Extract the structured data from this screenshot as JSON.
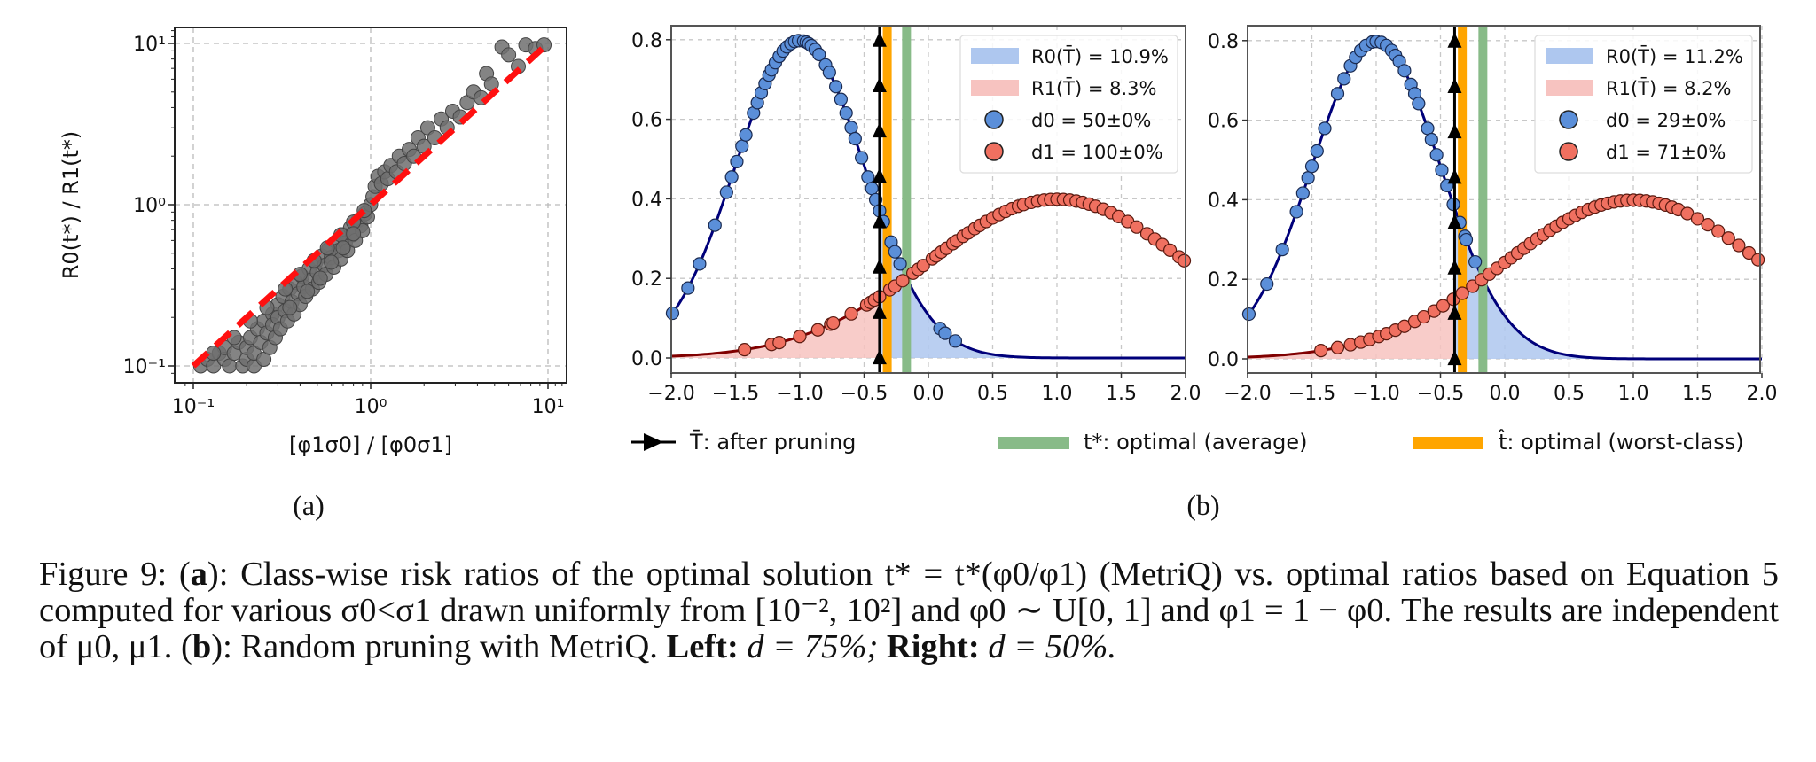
{
  "figure": {
    "caption": {
      "prefix": "Figure 9:",
      "a_label": "a",
      "a_text": ": Class-wise risk ratios of the optimal solution t* = t*(φ0/φ1) (MetriQ) vs. optimal ratios based on Equation 5 computed for various σ0<σ1 drawn uniformly from [10⁻², 10²] and φ0 ∼ U[0, 1] and φ1 = 1 − φ0. The results are independent of μ0, μ1.",
      "b_label": "b",
      "b_text": ": Random pruning with MetriQ.",
      "left_label": "Left:",
      "left_value": "d = 75%;",
      "right_label": "Right:",
      "right_value": "d = 50%."
    },
    "subfigure_labels": [
      "(a)",
      "(b)"
    ],
    "bottom_legend": [
      {
        "label": "T̄: after pruning",
        "marker": "arrow-triangle",
        "color": "#000000"
      },
      {
        "label": "t*: optimal (average)",
        "marker": "band",
        "color": "#88bb88"
      },
      {
        "label": "t̂: optimal (worst-class)",
        "marker": "band",
        "color": "#ffa500"
      }
    ]
  },
  "colors": {
    "class0_fill": "#5b8fd9",
    "class0_line": "#00007a",
    "class0_area": "#aec7ef",
    "class1_fill": "#f07060",
    "class1_line": "#800000",
    "class1_area": "#f7c3c0",
    "scatter": "#6e6e6e",
    "diagonal": "#ff1010",
    "t_star": "#88bb88",
    "t_hat": "#ffa500",
    "t_bar": "#000000"
  },
  "chart_data": [
    {
      "type": "scatter",
      "panel": "(a)",
      "xlabel": "[φ1σ0] / [φ0σ1]",
      "ylabel": "R0(t*) / R1(t*)",
      "xscale": "log",
      "yscale": "log",
      "xlim": [
        0.085,
        13
      ],
      "ylim": [
        0.085,
        13
      ],
      "xticks": [
        "10⁻¹",
        "10⁰",
        "10¹"
      ],
      "yticks": [
        "10⁻¹",
        "10⁰",
        "10¹"
      ],
      "tick_values": [
        0.1,
        1,
        10
      ],
      "grid": true,
      "reference_line": {
        "style": "dashed",
        "from": [
          0.1,
          0.1
        ],
        "to": [
          10,
          10
        ]
      },
      "points_description_value": "y ≈ x^1.25 for x<1 (below diagonal), y ≈ x for x>1 (above diagonal)",
      "points": [
        [
          0.11,
          0.1
        ],
        [
          0.12,
          0.11
        ],
        [
          0.13,
          0.1
        ],
        [
          0.14,
          0.12
        ],
        [
          0.15,
          0.11
        ],
        [
          0.15,
          0.13
        ],
        [
          0.16,
          0.1
        ],
        [
          0.17,
          0.12
        ],
        [
          0.18,
          0.14
        ],
        [
          0.19,
          0.1
        ],
        [
          0.2,
          0.11
        ],
        [
          0.2,
          0.13
        ],
        [
          0.21,
          0.15
        ],
        [
          0.22,
          0.1
        ],
        [
          0.22,
          0.12
        ],
        [
          0.23,
          0.17
        ],
        [
          0.24,
          0.14
        ],
        [
          0.25,
          0.11
        ],
        [
          0.25,
          0.19
        ],
        [
          0.26,
          0.16
        ],
        [
          0.27,
          0.13
        ],
        [
          0.28,
          0.21
        ],
        [
          0.28,
          0.18
        ],
        [
          0.29,
          0.15
        ],
        [
          0.3,
          0.24
        ],
        [
          0.3,
          0.2
        ],
        [
          0.31,
          0.17
        ],
        [
          0.32,
          0.27
        ],
        [
          0.33,
          0.22
        ],
        [
          0.34,
          0.19
        ],
        [
          0.35,
          0.3
        ],
        [
          0.36,
          0.25
        ],
        [
          0.37,
          0.21
        ],
        [
          0.38,
          0.33
        ],
        [
          0.39,
          0.28
        ],
        [
          0.4,
          0.24
        ],
        [
          0.41,
          0.36
        ],
        [
          0.42,
          0.31
        ],
        [
          0.43,
          0.27
        ],
        [
          0.45,
          0.4
        ],
        [
          0.46,
          0.34
        ],
        [
          0.47,
          0.3
        ],
        [
          0.49,
          0.44
        ],
        [
          0.5,
          0.38
        ],
        [
          0.51,
          0.33
        ],
        [
          0.53,
          0.48
        ],
        [
          0.55,
          0.42
        ],
        [
          0.56,
          0.37
        ],
        [
          0.58,
          0.53
        ],
        [
          0.6,
          0.47
        ],
        [
          0.62,
          0.41
        ],
        [
          0.64,
          0.59
        ],
        [
          0.66,
          0.52
        ],
        [
          0.68,
          0.46
        ],
        [
          0.7,
          0.65
        ],
        [
          0.72,
          0.58
        ],
        [
          0.74,
          0.52
        ],
        [
          0.77,
          0.72
        ],
        [
          0.79,
          0.65
        ],
        [
          0.82,
          0.6
        ],
        [
          0.85,
          0.8
        ],
        [
          0.88,
          0.74
        ],
        [
          0.9,
          0.69
        ],
        [
          0.93,
          0.88
        ],
        [
          0.96,
          0.84
        ],
        [
          1.0,
          1.0
        ],
        [
          1.03,
          1.12
        ],
        [
          1.06,
          1.3
        ],
        [
          1.1,
          1.5
        ],
        [
          1.15,
          1.35
        ],
        [
          1.2,
          1.6
        ],
        [
          1.25,
          1.45
        ],
        [
          1.3,
          1.75
        ],
        [
          1.4,
          1.6
        ],
        [
          1.45,
          2.0
        ],
        [
          1.55,
          1.8
        ],
        [
          1.65,
          2.2
        ],
        [
          1.75,
          2.0
        ],
        [
          1.85,
          2.6
        ],
        [
          2.0,
          2.3
        ],
        [
          2.1,
          3.0
        ],
        [
          2.3,
          2.6
        ],
        [
          2.5,
          3.4
        ],
        [
          2.7,
          3.0
        ],
        [
          2.9,
          3.8
        ],
        [
          3.2,
          3.5
        ],
        [
          3.5,
          4.3
        ],
        [
          3.8,
          5.0
        ],
        [
          4.2,
          4.6
        ],
        [
          4.5,
          6.5
        ],
        [
          4.8,
          5.6
        ],
        [
          5.5,
          9.5
        ],
        [
          6,
          8.5
        ],
        [
          6.8,
          7.2
        ],
        [
          7.5,
          9.8
        ],
        [
          8.5,
          9.3
        ],
        [
          9.5,
          9.8
        ],
        [
          0.13,
          0.12
        ],
        [
          0.17,
          0.15
        ],
        [
          0.21,
          0.19
        ],
        [
          0.26,
          0.23
        ],
        [
          0.33,
          0.3
        ],
        [
          0.4,
          0.37
        ],
        [
          0.48,
          0.45
        ],
        [
          0.57,
          0.54
        ],
        [
          0.68,
          0.65
        ],
        [
          0.8,
          0.78
        ],
        [
          0.92,
          0.92
        ],
        [
          0.35,
          0.23
        ],
        [
          0.44,
          0.29
        ],
        [
          0.52,
          0.35
        ],
        [
          0.6,
          0.44
        ],
        [
          0.7,
          0.54
        ],
        [
          0.8,
          0.66
        ]
      ]
    },
    {
      "type": "line",
      "panel": "(b) left",
      "xlim": [
        -2.0,
        2.0
      ],
      "ylim": [
        -0.04,
        0.84
      ],
      "xticks": [
        "−2.0",
        "−1.5",
        "−1.0",
        "−0.5",
        "0.0",
        "0.5",
        "1.0",
        "1.5",
        "2.0"
      ],
      "xtick_values": [
        -2,
        -1.5,
        -1,
        -0.5,
        0,
        0.5,
        1,
        1.5,
        2
      ],
      "yticks": [
        "0.0",
        "0.2",
        "0.4",
        "0.6",
        "0.8"
      ],
      "ytick_values": [
        0,
        0.2,
        0.4,
        0.6,
        0.8
      ],
      "grid": true,
      "series": [
        {
          "name": "class0 density",
          "mean": -1.0,
          "std": 0.5,
          "weight": 1.0
        },
        {
          "name": "class1 density",
          "mean": 1.0,
          "std": 1.0,
          "weight": 1.0
        }
      ],
      "T_bar": -0.38,
      "t_star": -0.17,
      "t_hat": -0.32,
      "class0_samples_x": [
        -1.99,
        -1.87,
        -1.78,
        -1.66,
        -1.57,
        -1.53,
        -1.49,
        -1.45,
        -1.42,
        -1.36,
        -1.33,
        -1.3,
        -1.27,
        -1.24,
        -1.22,
        -1.19,
        -1.16,
        -1.13,
        -1.1,
        -1.07,
        -1.04,
        -1.01,
        -0.97,
        -0.95,
        -0.93,
        -0.91,
        -0.88,
        -0.85,
        -0.8,
        -0.77,
        -0.72,
        -0.68,
        -0.64,
        -0.6,
        -0.57,
        -0.52,
        -0.47,
        -0.44,
        -0.41,
        -0.38,
        -0.35,
        -0.29,
        -0.26,
        -0.22,
        0.09,
        0.13,
        0.21
      ],
      "class1_samples_x": [
        -1.43,
        -1.22,
        -1.16,
        -1.0,
        -0.86,
        -0.76,
        -0.74,
        -0.6,
        -0.48,
        -0.45,
        -0.42,
        -0.38,
        -0.3,
        -0.26,
        -0.2,
        -0.12,
        -0.08,
        -0.04,
        0.03,
        0.06,
        0.1,
        0.14,
        0.19,
        0.22,
        0.27,
        0.31,
        0.36,
        0.4,
        0.45,
        0.5,
        0.55,
        0.6,
        0.65,
        0.7,
        0.74,
        0.8,
        0.85,
        0.9,
        0.95,
        1.0,
        1.05,
        1.1,
        1.15,
        1.2,
        1.25,
        1.3,
        1.36,
        1.42,
        1.48,
        1.55,
        1.62,
        1.7,
        1.76,
        1.82,
        1.88,
        1.95,
        1.99
      ],
      "legend": [
        {
          "label": "R0(T̄) = 10.9%",
          "kind": "area",
          "series": 0
        },
        {
          "label": "R1(T̄) = 8.3%",
          "kind": "area",
          "series": 1
        },
        {
          "label": "d0 = 50±0%",
          "kind": "marker",
          "series": 0
        },
        {
          "label": "d1 = 100±0%",
          "kind": "marker",
          "series": 1
        }
      ]
    },
    {
      "type": "line",
      "panel": "(b) right",
      "xlim": [
        -2.0,
        2.0
      ],
      "ylim": [
        -0.04,
        0.84
      ],
      "xticks": [
        "−2.0",
        "−1.5",
        "−1.0",
        "−0.5",
        "0.0",
        "0.5",
        "1.0",
        "1.5",
        "2.0"
      ],
      "xtick_values": [
        -2,
        -1.5,
        -1,
        -0.5,
        0,
        0.5,
        1,
        1.5,
        2
      ],
      "yticks": [
        "0.0",
        "0.2",
        "0.4",
        "0.6",
        "0.8"
      ],
      "ytick_values": [
        0,
        0.2,
        0.4,
        0.6,
        0.8
      ],
      "grid": true,
      "series": [
        {
          "name": "class0 density",
          "mean": -1.0,
          "std": 0.5,
          "weight": 1.0
        },
        {
          "name": "class1 density",
          "mean": 1.0,
          "std": 1.0,
          "weight": 1.0
        }
      ],
      "T_bar": -0.39,
      "t_star": -0.17,
      "t_hat": -0.33,
      "class0_samples_x": [
        -1.99,
        -1.85,
        -1.73,
        -1.62,
        -1.57,
        -1.53,
        -1.5,
        -1.46,
        -1.4,
        -1.3,
        -1.25,
        -1.2,
        -1.16,
        -1.12,
        -1.08,
        -1.03,
        -1.0,
        -0.96,
        -0.92,
        -0.88,
        -0.85,
        -0.82,
        -0.78,
        -0.73,
        -0.7,
        -0.67,
        -0.6,
        -0.57,
        -0.53,
        -0.49,
        -0.45,
        -0.4,
        -0.35,
        -0.31,
        -0.3,
        -0.23
      ],
      "class1_samples_x": [
        -1.43,
        -1.3,
        -1.2,
        -1.12,
        -1.05,
        -0.98,
        -0.92,
        -0.85,
        -0.78,
        -0.7,
        -0.63,
        -0.55,
        -0.48,
        -0.4,
        -0.33,
        -0.25,
        -0.18,
        -0.12,
        -0.06,
        0.0,
        0.05,
        0.1,
        0.15,
        0.2,
        0.25,
        0.3,
        0.35,
        0.4,
        0.45,
        0.5,
        0.55,
        0.6,
        0.65,
        0.7,
        0.75,
        0.8,
        0.85,
        0.9,
        0.95,
        1.0,
        1.05,
        1.1,
        1.15,
        1.2,
        1.25,
        1.3,
        1.35,
        1.42,
        1.5,
        1.58,
        1.66,
        1.74,
        1.82,
        1.9,
        1.97
      ],
      "legend": [
        {
          "label": "R0(T̄) = 11.2%",
          "kind": "area",
          "series": 0
        },
        {
          "label": "R1(T̄) = 8.2%",
          "kind": "area",
          "series": 1
        },
        {
          "label": "d0 = 29±0%",
          "kind": "marker",
          "series": 0
        },
        {
          "label": "d1 = 71±0%",
          "kind": "marker",
          "series": 1
        }
      ]
    }
  ]
}
